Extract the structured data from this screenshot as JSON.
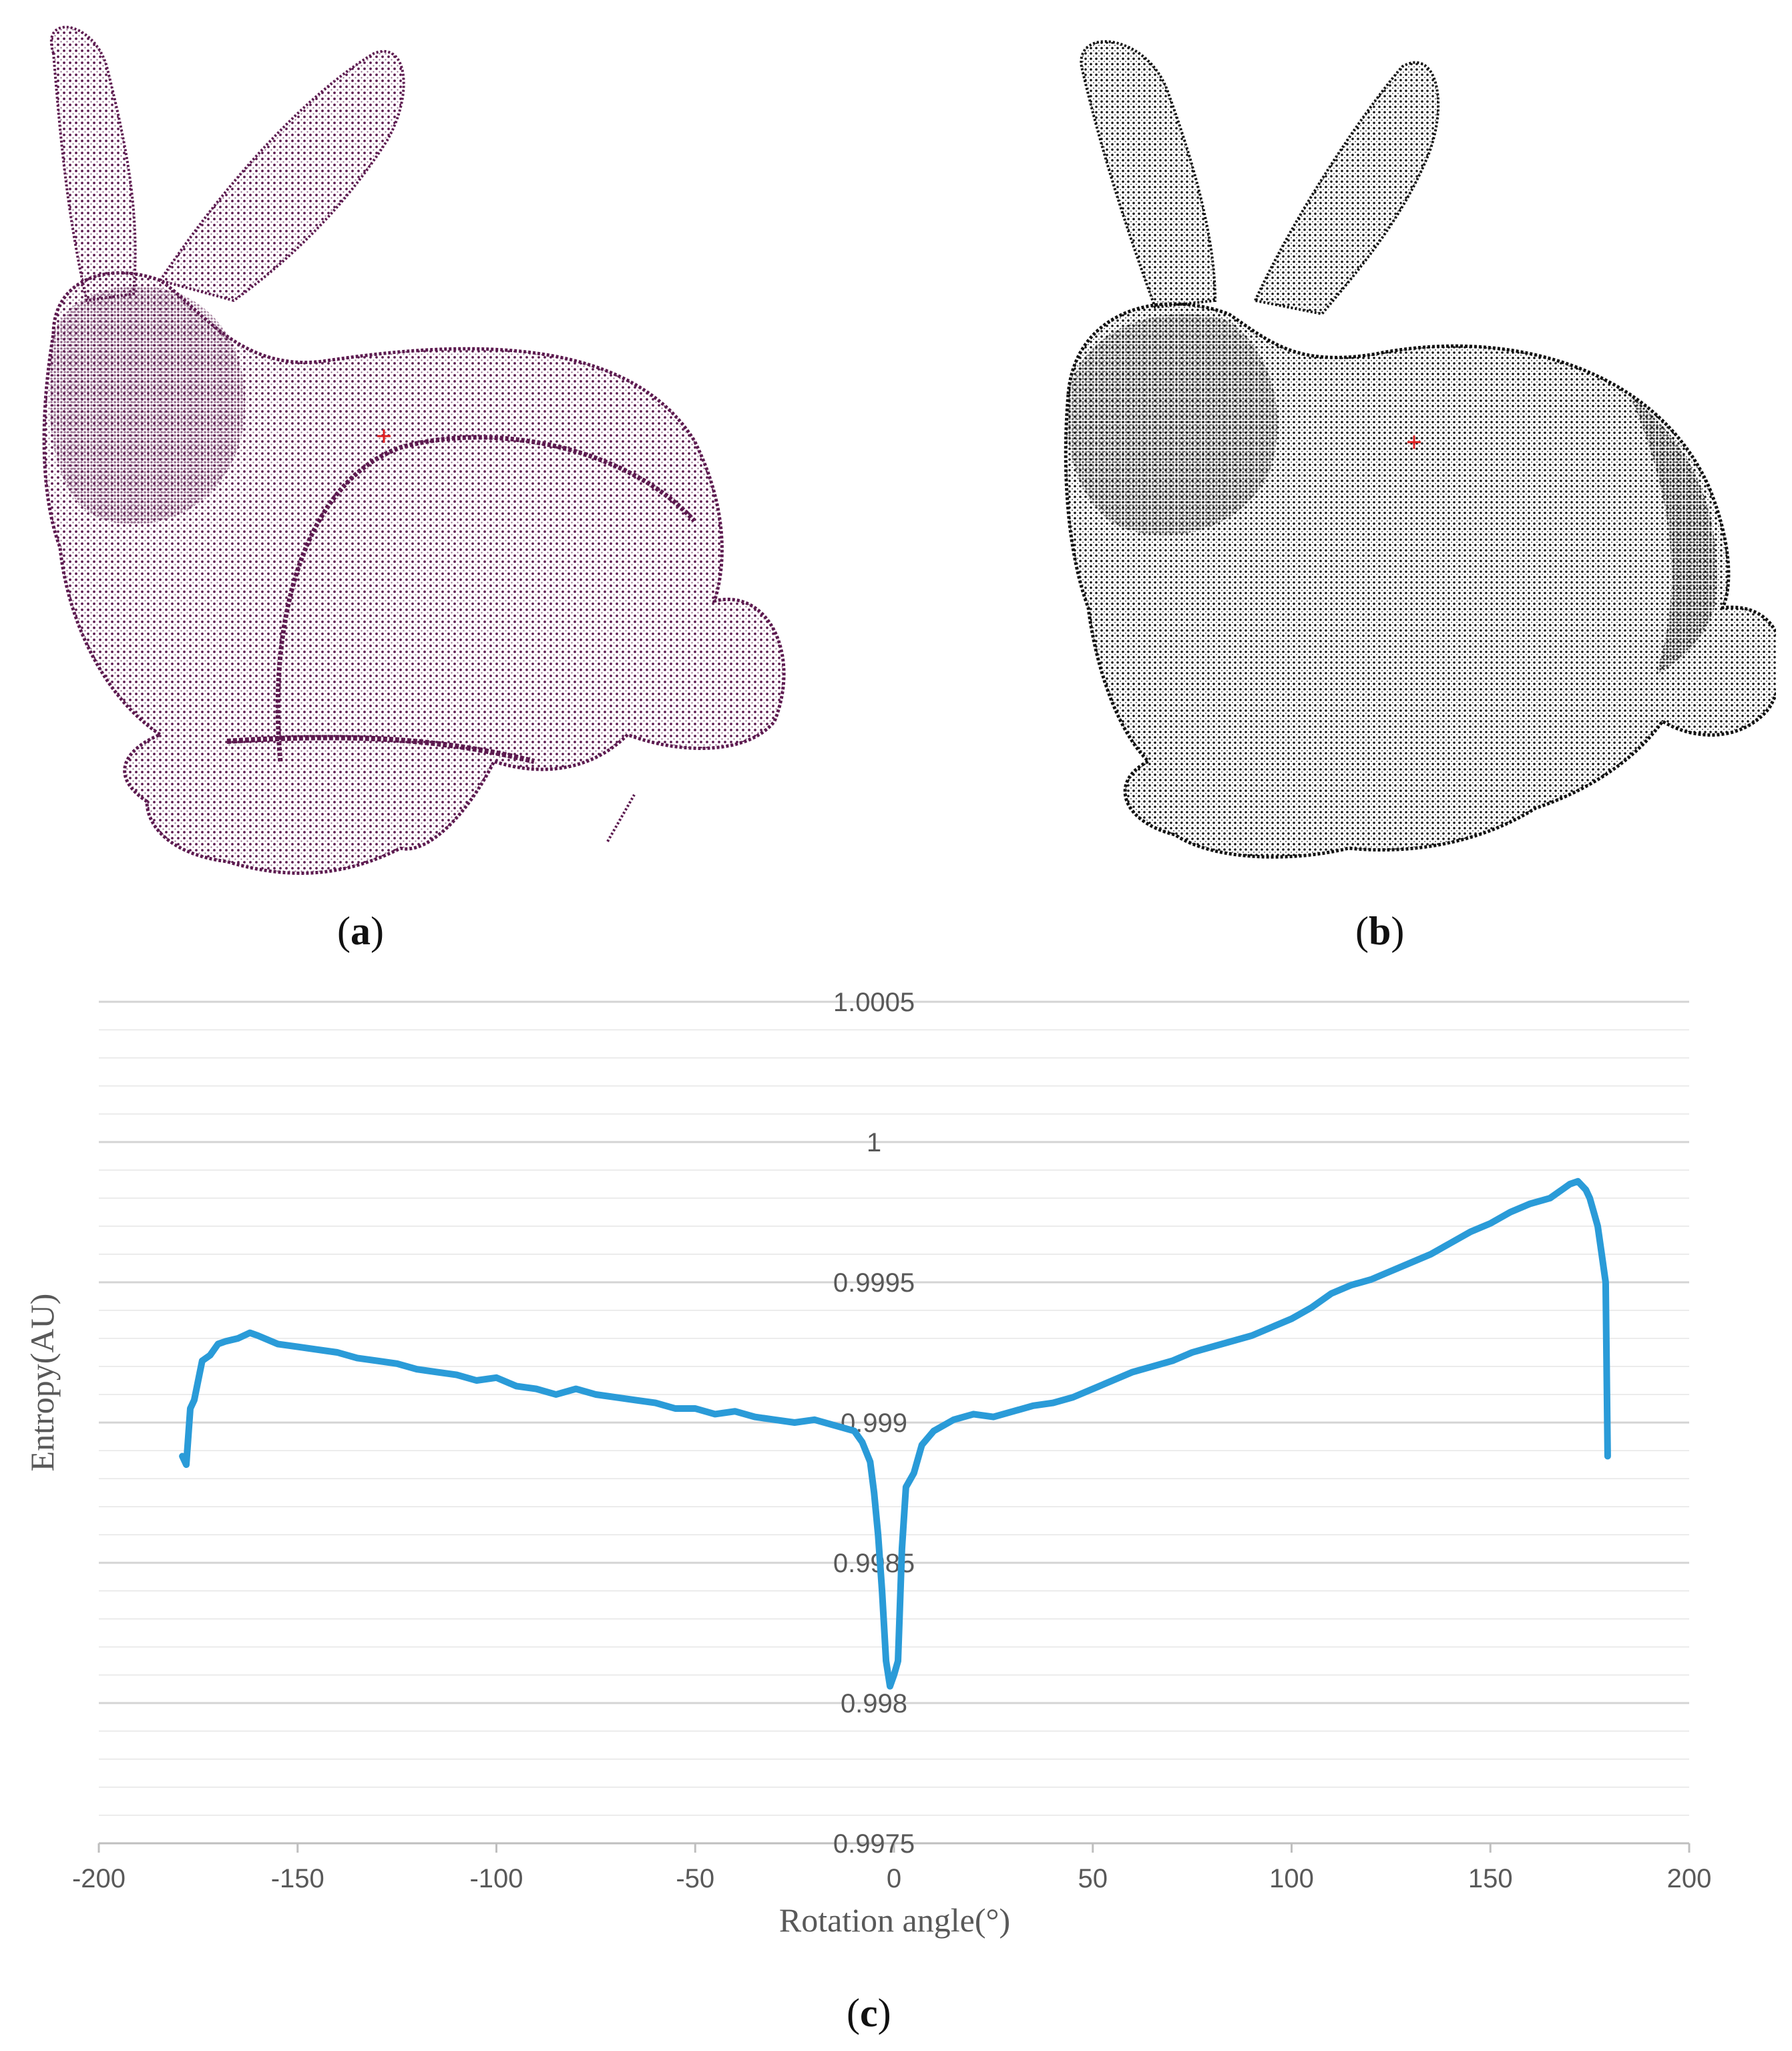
{
  "panels": {
    "a": {
      "label": "a",
      "point_color": "#5c1a4f",
      "marker_color": "#e02020"
    },
    "b": {
      "label": "b",
      "point_color": "#111111",
      "marker_color": "#e02020"
    },
    "c": {
      "label": "c"
    }
  },
  "chart_data": {
    "type": "line",
    "title": "",
    "xlabel": "Rotation angle(°)",
    "ylabel": "Entropy(AU)",
    "xlim": [
      -200,
      200
    ],
    "ylim": [
      0.9975,
      1.0005
    ],
    "x_ticks": [
      -200,
      -150,
      -100,
      -50,
      0,
      50,
      100,
      150,
      200
    ],
    "y_ticks": [
      0.9975,
      0.998,
      0.9985,
      0.999,
      0.9995,
      1,
      1.0005
    ],
    "grid": "horizontal",
    "line_color": "#2a9bd8",
    "series": [
      {
        "x": [
          -179,
          -178,
          -177,
          -176,
          -174,
          -172,
          -170,
          -168,
          -165,
          -162,
          -160,
          -155,
          -150,
          -145,
          -140,
          -135,
          -130,
          -125,
          -120,
          -115,
          -110,
          -105,
          -100,
          -95,
          -90,
          -85,
          -80,
          -75,
          -70,
          -65,
          -60,
          -55,
          -50,
          -45,
          -40,
          -35,
          -30,
          -25,
          -20,
          -15,
          -10,
          -8,
          -6,
          -5,
          -4,
          -3,
          -2,
          -1,
          0,
          1,
          2,
          3,
          5,
          7,
          10,
          15,
          20,
          25,
          30,
          35,
          40,
          45,
          50,
          55,
          60,
          65,
          70,
          75,
          80,
          85,
          90,
          95,
          100,
          105,
          110,
          115,
          120,
          125,
          130,
          135,
          140,
          145,
          150,
          155,
          160,
          165,
          168,
          170,
          172,
          174,
          175,
          176,
          177,
          178,
          179,
          179.5
        ],
        "y": [
          0.99888,
          0.99885,
          0.99905,
          0.99908,
          0.99922,
          0.99924,
          0.99928,
          0.99929,
          0.9993,
          0.99932,
          0.99931,
          0.99928,
          0.99927,
          0.99926,
          0.99925,
          0.99923,
          0.99922,
          0.99921,
          0.99919,
          0.99918,
          0.99917,
          0.99915,
          0.99916,
          0.99913,
          0.99912,
          0.9991,
          0.99912,
          0.9991,
          0.99909,
          0.99908,
          0.99907,
          0.99905,
          0.99905,
          0.99903,
          0.99904,
          0.99902,
          0.99901,
          0.999,
          0.99901,
          0.99899,
          0.99897,
          0.99893,
          0.99886,
          0.99875,
          0.9986,
          0.9984,
          0.99815,
          0.99806,
          0.9981,
          0.99815,
          0.99855,
          0.99877,
          0.99882,
          0.99892,
          0.99897,
          0.99901,
          0.99903,
          0.99902,
          0.99904,
          0.99906,
          0.99907,
          0.99909,
          0.99912,
          0.99915,
          0.99918,
          0.9992,
          0.99922,
          0.99925,
          0.99927,
          0.99929,
          0.99931,
          0.99934,
          0.99937,
          0.99941,
          0.99946,
          0.99949,
          0.99951,
          0.99954,
          0.99957,
          0.9996,
          0.99964,
          0.99968,
          0.99971,
          0.99975,
          0.99978,
          0.9998,
          0.99983,
          0.99985,
          0.99986,
          0.99983,
          0.9998,
          0.99975,
          0.9997,
          0.9996,
          0.9995,
          0.99888
        ]
      }
    ]
  }
}
